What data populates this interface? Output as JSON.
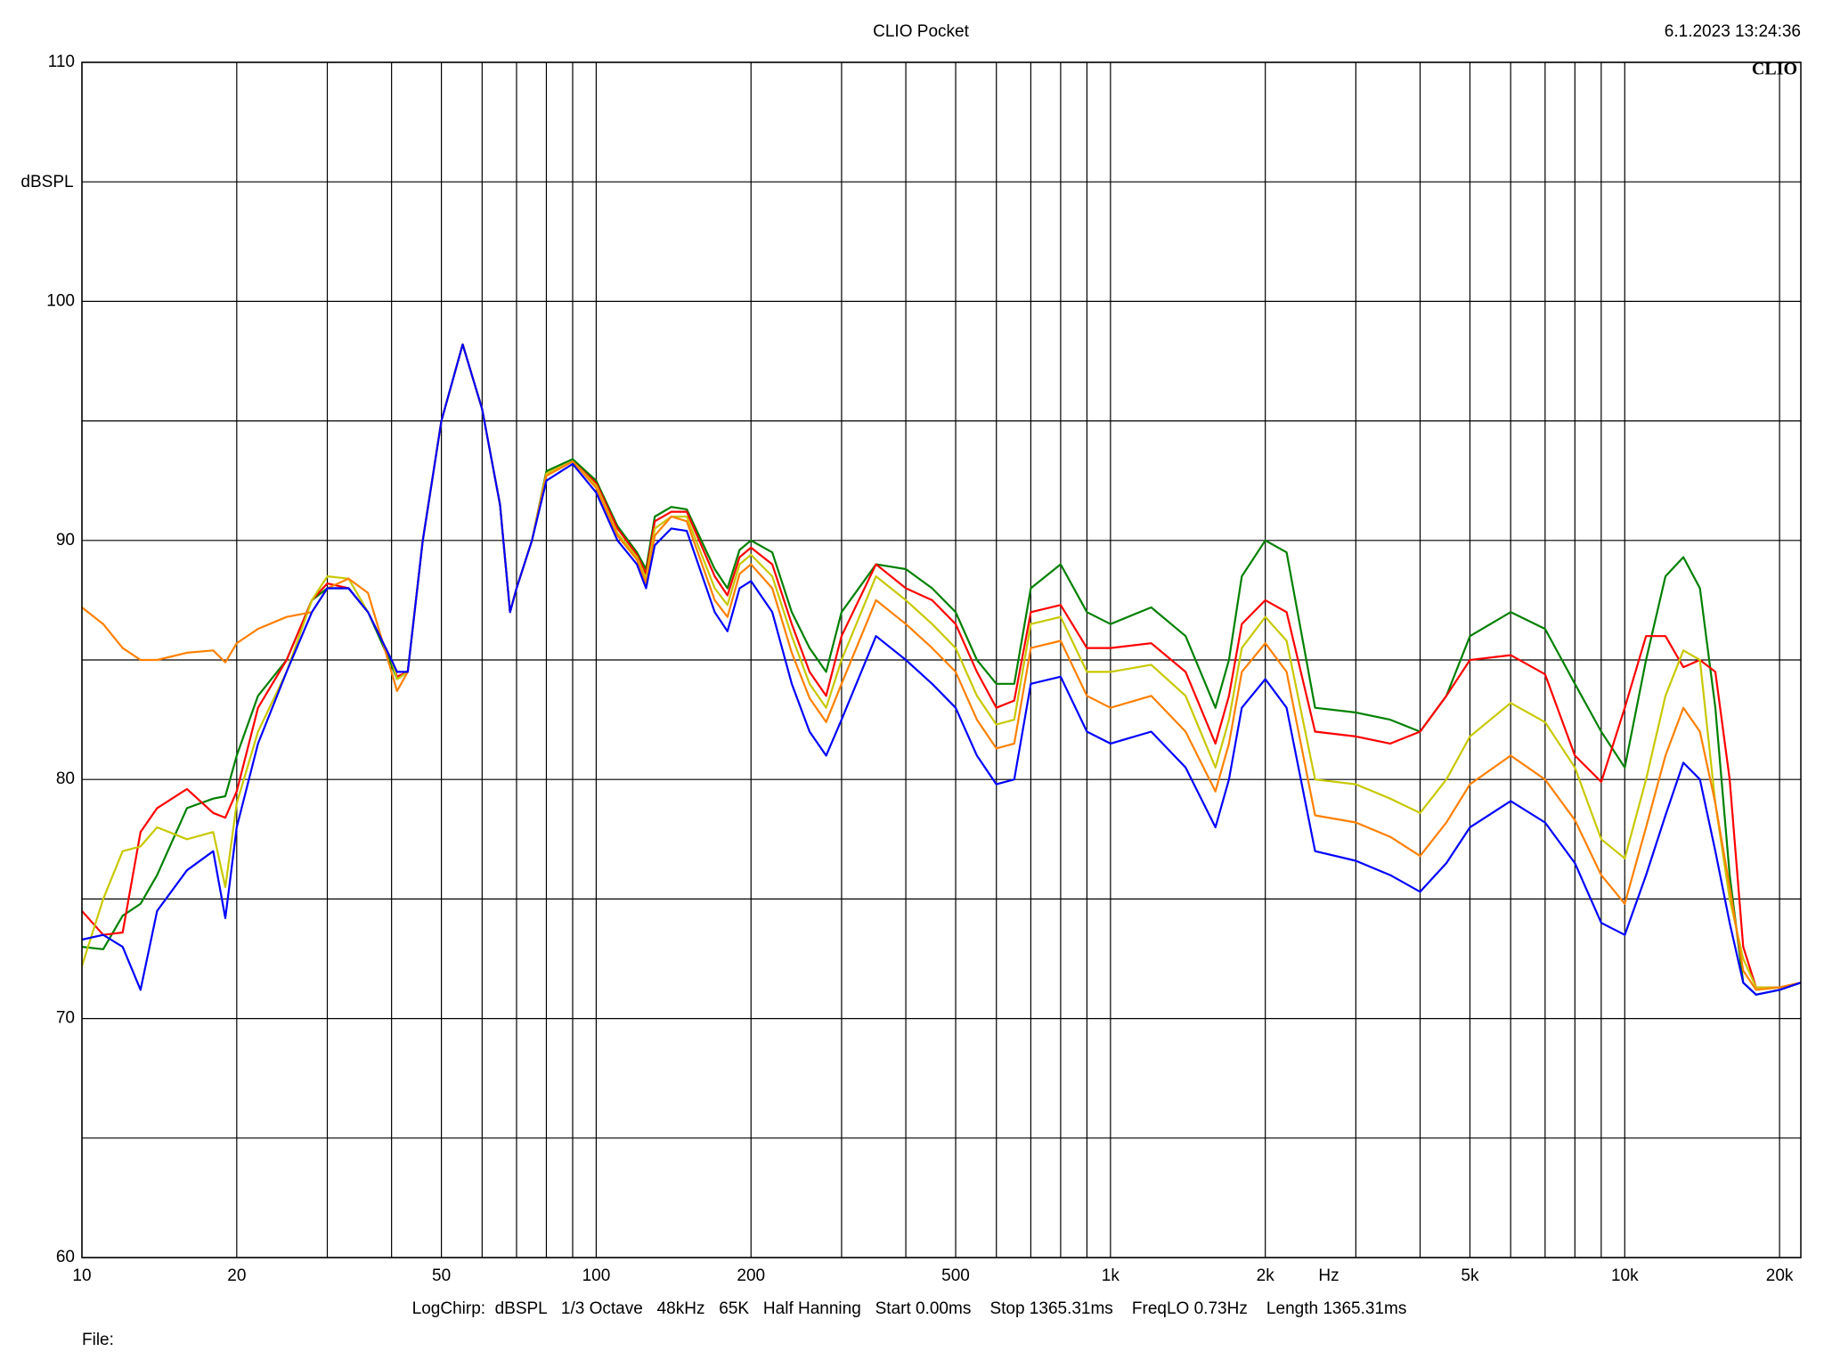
{
  "chart_data": {
    "type": "line",
    "title": "CLIO Pocket",
    "timestamp": "6.1.2023 13:24:36",
    "logo": "CLIO",
    "ylabel": "dBSPL",
    "xlabel": "Hz",
    "footer": "LogChirp:  dBSPL   1/3 Octave   48kHz   65K   Half Hanning   Start 0.00ms    Stop 1365.31ms    FreqLO 0.73Hz    Length 1365.31ms",
    "file_label": "File:",
    "log_x": true,
    "grid": true,
    "xlim": [
      10,
      22000
    ],
    "ylim": [
      60,
      110
    ],
    "yticks": [
      60,
      70,
      80,
      90,
      100,
      110
    ],
    "yminor": [
      65,
      75,
      85,
      95,
      105
    ],
    "xticks": [
      10,
      20,
      50,
      100,
      200,
      500,
      {
        "value": 1000,
        "label": "1k"
      },
      {
        "value": 2000,
        "label": "2k"
      },
      {
        "value": 5000,
        "label": "5k"
      },
      {
        "value": 10000,
        "label": "10k"
      },
      {
        "value": 20000,
        "label": "20k"
      }
    ],
    "xminor": [
      30,
      40,
      60,
      70,
      80,
      90,
      300,
      400,
      600,
      700,
      800,
      900,
      3000,
      4000,
      6000,
      7000,
      8000,
      9000
    ],
    "x": [
      10,
      11,
      12,
      13,
      14,
      16,
      18,
      19,
      20,
      22,
      25,
      28,
      30,
      33,
      36,
      40,
      41,
      43,
      46,
      50,
      55,
      60,
      65,
      68,
      70,
      75,
      80,
      90,
      100,
      110,
      120,
      125,
      130,
      140,
      150,
      170,
      180,
      190,
      200,
      220,
      240,
      260,
      280,
      300,
      350,
      400,
      450,
      500,
      550,
      600,
      650,
      700,
      800,
      900,
      1000,
      1200,
      1400,
      1600,
      1700,
      1800,
      2000,
      2200,
      2500,
      3000,
      3500,
      4000,
      4500,
      5000,
      6000,
      7000,
      8000,
      9000,
      10000,
      11000,
      12000,
      13000,
      14000,
      15000,
      16000,
      17000,
      18000,
      20000,
      22000
    ],
    "series": [
      {
        "color": "#008000",
        "values": [
          73,
          72.9,
          74.3,
          74.8,
          76,
          78.8,
          79.2,
          79.3,
          81,
          83.5,
          85,
          87.5,
          88,
          88,
          87,
          84.8,
          84.2,
          84.5,
          90,
          95,
          98.2,
          95.5,
          91.5,
          87,
          88,
          90,
          92.9,
          93.4,
          92.5,
          90.6,
          89.5,
          88.8,
          91,
          91.4,
          91.3,
          88.8,
          88,
          89.6,
          90,
          89.5,
          87,
          85.5,
          84.5,
          87,
          89,
          88.8,
          88,
          87,
          85,
          84,
          84,
          88,
          89,
          87,
          86.5,
          87.2,
          86,
          83,
          85,
          88.5,
          90,
          89.5,
          83,
          82.8,
          82.5,
          82,
          83.5,
          86,
          87,
          86.3,
          84,
          82,
          80.5,
          85,
          88.5,
          89.3,
          88,
          83,
          76,
          71.5,
          71,
          71.2,
          71.5
        ]
      },
      {
        "color": "#ff0000",
        "values": [
          74.5,
          73.5,
          73.6,
          77.8,
          78.8,
          79.6,
          78.6,
          78.4,
          79.5,
          83,
          85,
          87.5,
          88.2,
          88,
          87,
          85,
          84.3,
          84.5,
          90,
          95,
          98.2,
          95.5,
          91.5,
          87,
          88,
          90,
          92.8,
          93.3,
          92.4,
          90.5,
          89.4,
          88.6,
          90.8,
          91.2,
          91.2,
          88.5,
          87.7,
          89.3,
          89.7,
          89,
          86.5,
          84.5,
          83.5,
          86,
          89,
          88,
          87.5,
          86.5,
          84.5,
          83,
          83.3,
          87,
          87.3,
          85.5,
          85.5,
          85.7,
          84.5,
          81.5,
          83.5,
          86.5,
          87.5,
          87,
          82,
          81.8,
          81.5,
          82,
          83.5,
          85,
          85.2,
          84.4,
          81,
          79.9,
          83,
          86,
          86,
          84.7,
          85,
          84.5,
          80,
          73,
          71.3,
          71.3,
          71.5
        ]
      },
      {
        "color": "#c8c800",
        "values": [
          72.2,
          75,
          77,
          77.2,
          78,
          77.5,
          77.8,
          75.5,
          79,
          82,
          84.5,
          87.5,
          88.5,
          88.4,
          87,
          85,
          84.2,
          84.5,
          90,
          95,
          98.2,
          95.5,
          91.5,
          87,
          88,
          90,
          92.8,
          93.3,
          92.3,
          90.3,
          89.3,
          88.4,
          90.5,
          91,
          91,
          88,
          87.3,
          89,
          89.4,
          88.5,
          86,
          84,
          83,
          85,
          88.5,
          87.5,
          86.5,
          85.5,
          83.5,
          82.3,
          82.5,
          86.5,
          86.8,
          84.5,
          84.5,
          84.8,
          83.5,
          80.5,
          82.5,
          85.5,
          86.8,
          85.8,
          80,
          79.8,
          79.2,
          78.6,
          80,
          81.8,
          83.2,
          82.4,
          80.5,
          77.5,
          76.7,
          80,
          83.5,
          85.4,
          85,
          79,
          75,
          72.5,
          71.3,
          71.3,
          71.5
        ]
      },
      {
        "color": "#ff8000",
        "values": [
          87.2,
          86.5,
          85.5,
          85,
          85,
          85.3,
          85.4,
          84.9,
          85.7,
          86.3,
          86.8,
          87,
          88,
          88.4,
          87.8,
          84.5,
          83.7,
          84.5,
          90,
          95,
          98.2,
          95.5,
          91.5,
          87,
          88,
          90,
          92.7,
          93.3,
          92.2,
          90.2,
          89.2,
          88.2,
          90.2,
          91,
          90.8,
          87.5,
          86.8,
          88.6,
          89,
          88,
          85.3,
          83.4,
          82.4,
          84,
          87.5,
          86.5,
          85.5,
          84.5,
          82.5,
          81.3,
          81.5,
          85.5,
          85.8,
          83.5,
          83,
          83.5,
          82,
          79.5,
          81.5,
          84.5,
          85.7,
          84.5,
          78.5,
          78.2,
          77.6,
          76.8,
          78.2,
          79.8,
          81,
          80,
          78.3,
          76,
          74.8,
          78,
          81,
          83,
          82,
          79,
          75.5,
          72,
          71.2,
          71.3,
          71.5
        ]
      },
      {
        "color": "#0000ff",
        "values": [
          73.3,
          73.5,
          73,
          71.2,
          74.5,
          76.2,
          77,
          74.2,
          78,
          81.5,
          84.5,
          87,
          88,
          88,
          87,
          85,
          84.5,
          84.5,
          90,
          95,
          98.2,
          95.5,
          91.5,
          87,
          88,
          90,
          92.5,
          93.2,
          92,
          90,
          89,
          88,
          89.8,
          90.5,
          90.4,
          87,
          86.2,
          88,
          88.3,
          87,
          84,
          82,
          81,
          82.5,
          86,
          85,
          84,
          83,
          81,
          79.8,
          80,
          84,
          84.3,
          82,
          81.5,
          82,
          80.5,
          78,
          80,
          83,
          84.2,
          83,
          77,
          76.6,
          76,
          75.3,
          76.5,
          78,
          79.1,
          78.2,
          76.5,
          74,
          73.5,
          76,
          78.5,
          80.7,
          80,
          77,
          74,
          71.5,
          71,
          71.2,
          71.5
        ]
      }
    ]
  }
}
